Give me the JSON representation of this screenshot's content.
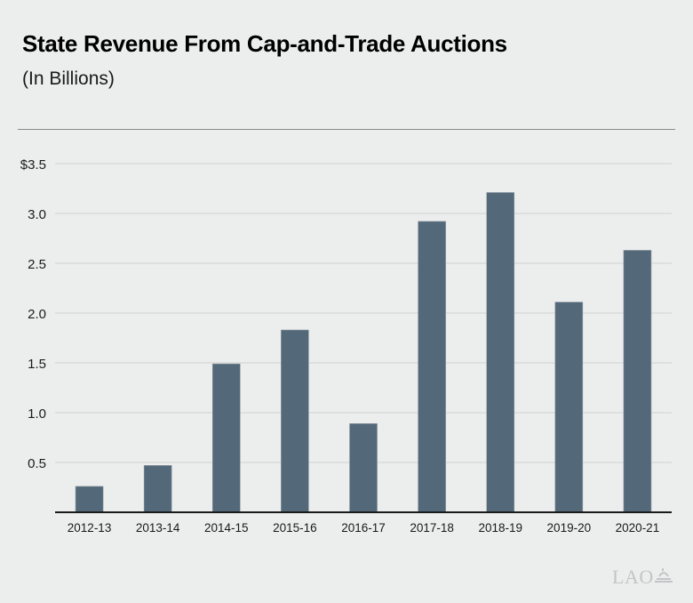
{
  "header": {
    "title": "State Revenue From Cap-and-Trade Auctions",
    "subtitle": "(In Billions)"
  },
  "logo": {
    "text": "LAO",
    "icon": "lao-dome-icon"
  },
  "colors": {
    "bar": "#536878",
    "grid": "#d6d8d8",
    "axis": "#1a1a1a",
    "background": "#eceded"
  },
  "chart_data": {
    "type": "bar",
    "title": "State Revenue From Cap-and-Trade Auctions",
    "subtitle": "(In Billions)",
    "xlabel": "",
    "ylabel": "",
    "categories": [
      "2012-13",
      "2013-14",
      "2014-15",
      "2015-16",
      "2016-17",
      "2017-18",
      "2018-19",
      "2019-20",
      "2020-21"
    ],
    "values": [
      0.26,
      0.47,
      1.49,
      1.83,
      0.89,
      2.92,
      3.21,
      2.11,
      2.63
    ],
    "ylim": [
      0,
      3.5
    ],
    "yticks": [
      0.5,
      1.0,
      1.5,
      2.0,
      2.5,
      3.0,
      3.5
    ],
    "ytick_labels": [
      "0.5",
      "1.0",
      "1.5",
      "2.0",
      "2.5",
      "3.0",
      "$3.5"
    ],
    "grid": true,
    "legend": "none"
  }
}
